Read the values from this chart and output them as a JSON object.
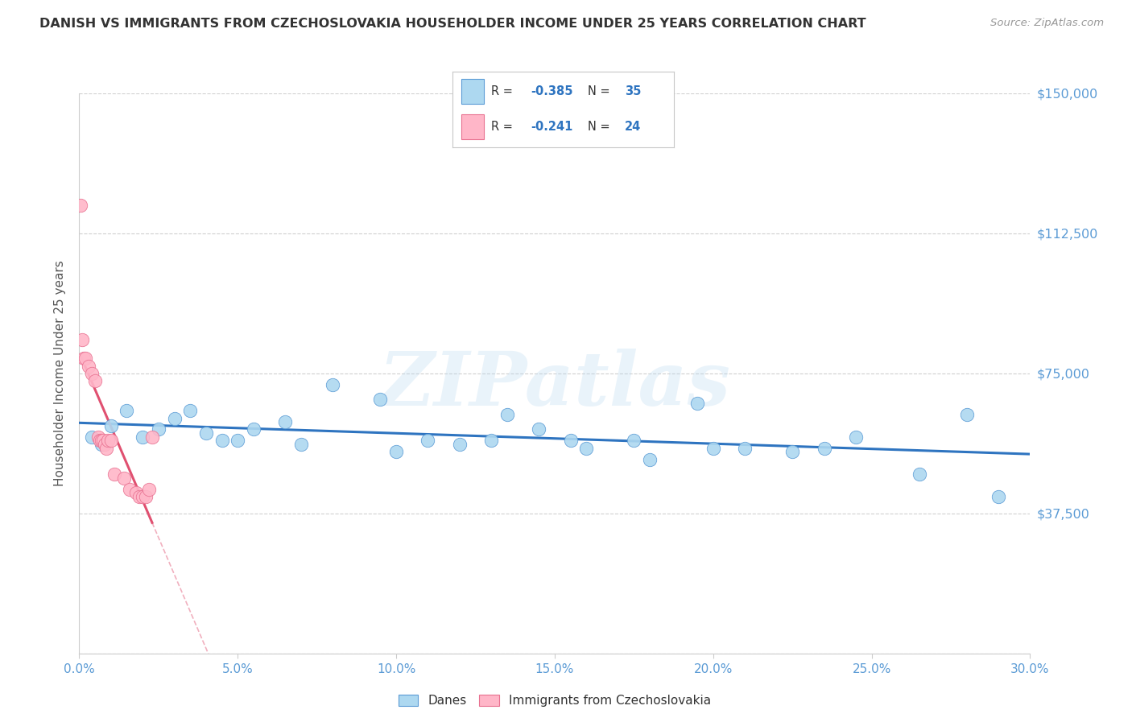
{
  "title": "DANISH VS IMMIGRANTS FROM CZECHOSLOVAKIA HOUSEHOLDER INCOME UNDER 25 YEARS CORRELATION CHART",
  "source": "Source: ZipAtlas.com",
  "ylabel": "Householder Income Under 25 years",
  "xtick_labels": [
    "0.0%",
    "5.0%",
    "10.0%",
    "15.0%",
    "20.0%",
    "25.0%",
    "30.0%"
  ],
  "xtick_vals": [
    0.0,
    5.0,
    10.0,
    15.0,
    20.0,
    25.0,
    30.0
  ],
  "ytick_vals": [
    0,
    37500,
    75000,
    112500,
    150000
  ],
  "ytick_labels_right": [
    "",
    "$37,500",
    "$75,000",
    "$112,500",
    "$150,000"
  ],
  "xlim": [
    0,
    30
  ],
  "ylim": [
    0,
    150000
  ],
  "watermark": "ZIPatlas",
  "legend_label_blue": "Danes",
  "legend_label_pink": "Immigrants from Czechoslovakia",
  "blue_dot_color": "#ADD8F0",
  "blue_edge_color": "#5B9BD5",
  "blue_line_color": "#2E74C0",
  "pink_dot_color": "#FFB6C8",
  "pink_edge_color": "#E87090",
  "pink_line_color": "#E05070",
  "title_color": "#333333",
  "source_color": "#999999",
  "ytick_color": "#5B9BD5",
  "xtick_color": "#5B9BD5",
  "grid_color": "#d0d0d0",
  "r_val_color": "#2E74C0",
  "r_pink_color": "#E05070",
  "ylabel_color": "#555555",
  "blue_x": [
    0.4,
    0.7,
    1.0,
    1.5,
    2.0,
    2.5,
    3.0,
    3.5,
    4.0,
    4.5,
    5.0,
    5.5,
    6.5,
    8.0,
    9.5,
    11.0,
    12.0,
    13.5,
    14.5,
    15.5,
    16.0,
    17.5,
    19.5,
    20.0,
    21.0,
    22.5,
    23.5,
    24.5,
    26.5,
    28.0,
    29.0,
    13.0,
    7.0,
    10.0,
    18.0
  ],
  "blue_y": [
    58000,
    56000,
    61000,
    65000,
    58000,
    60000,
    63000,
    65000,
    59000,
    57000,
    57000,
    60000,
    62000,
    72000,
    68000,
    57000,
    56000,
    64000,
    60000,
    57000,
    55000,
    57000,
    67000,
    55000,
    55000,
    54000,
    55000,
    58000,
    48000,
    64000,
    42000,
    57000,
    56000,
    54000,
    52000
  ],
  "pink_x": [
    0.05,
    0.1,
    0.15,
    0.2,
    0.3,
    0.4,
    0.5,
    0.6,
    0.65,
    0.7,
    0.75,
    0.8,
    0.85,
    0.9,
    1.0,
    1.1,
    1.4,
    1.6,
    1.8,
    1.9,
    2.0,
    2.1,
    2.2,
    2.3
  ],
  "pink_y": [
    120000,
    84000,
    79000,
    79000,
    77000,
    75000,
    73000,
    58000,
    57000,
    57000,
    57000,
    56000,
    55000,
    57000,
    57000,
    48000,
    47000,
    44000,
    43000,
    42000,
    42000,
    42000,
    44000,
    58000
  ],
  "blue_r": "-0.385",
  "blue_n": "35",
  "pink_r": "-0.241",
  "pink_n": "24"
}
